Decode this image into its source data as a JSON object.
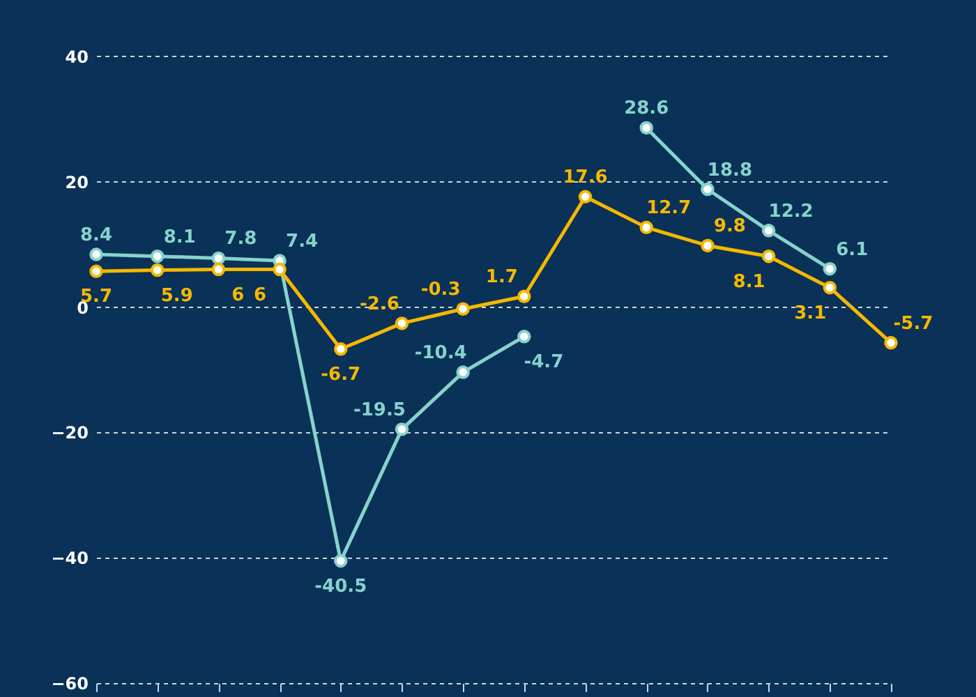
{
  "chart_data": {
    "type": "line",
    "categories": [
      null,
      null,
      null,
      null,
      null,
      null,
      null,
      null,
      null,
      null,
      null,
      null,
      null,
      null
    ],
    "series": [
      {
        "color": "#86d3cb",
        "values": [
          8.4,
          8.1,
          7.8,
          7.4,
          -40.5,
          -19.5,
          -10.4,
          -4.7,
          null,
          28.6,
          18.8,
          12.2,
          6.1,
          null
        ]
      },
      {
        "color": "#f5b800",
        "values": [
          5.7,
          5.9,
          6,
          6,
          -6.7,
          -2.6,
          -0.3,
          1.7,
          17.6,
          12.7,
          9.8,
          8.1,
          3.1,
          -5.7
        ]
      }
    ],
    "ylim": [
      -60,
      49
    ],
    "yticks": [
      -60,
      -40,
      -20,
      0,
      20,
      40
    ],
    "grid": "y",
    "tick_labels": "y",
    "marker": "circle",
    "line_style": "solid",
    "data_labels": true
  }
}
